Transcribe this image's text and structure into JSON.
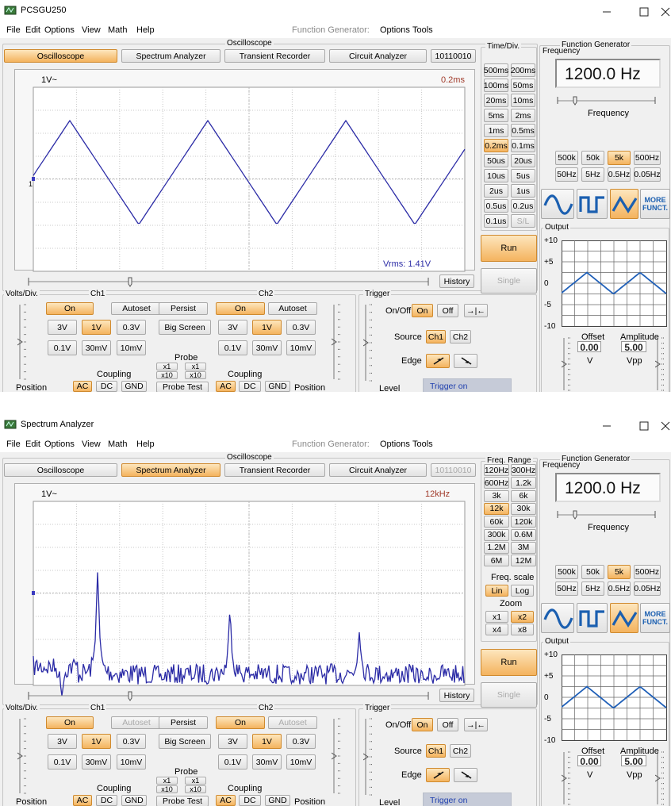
{
  "windows": [
    {
      "title": "PCSGU250",
      "menu": [
        "File",
        "Edit",
        "Options",
        "View",
        "Math",
        "Help"
      ],
      "generator_menu": {
        "label": "Function Generator:",
        "items": [
          "Options",
          "Tools"
        ]
      },
      "oscilloscope_label": "Oscilloscope",
      "tabs": [
        "Oscilloscope",
        "Spectrum Analyzer",
        "Transient Recorder",
        "Circuit Analyzer",
        "10110010"
      ],
      "active_tab": 0,
      "screen": {
        "mode": "scope",
        "volts_label": "1V~",
        "range_label": "0.2ms",
        "marker": "1",
        "vrms": "Vrms: 1.41V"
      },
      "history": "History",
      "timebase": {
        "title": "Time/Div.",
        "buttons": [
          "500ms",
          "200ms",
          "100ms",
          "50ms",
          "20ms",
          "10ms",
          "5ms",
          "2ms",
          "1ms",
          "0.5ms",
          "0.2ms",
          "0.1ms",
          "50us",
          "20us",
          "10us",
          "5us",
          "2us",
          "1us",
          "0.5us",
          "0.2us",
          "0.1us",
          "S/L"
        ],
        "active": 10,
        "disabled": 21
      },
      "run": "Run",
      "single": "Single",
      "volts_div": {
        "title": "Volts/Div.",
        "ch1": {
          "title": "Ch1",
          "on": "On",
          "autoset": "Autoset",
          "autoset_disabled": false,
          "ranges": [
            "3V",
            "1V",
            "0.3V",
            "0.1V",
            "30mV",
            "10mV"
          ],
          "active_range": 1,
          "coupling_label": "Coupling",
          "coupling": [
            "AC",
            "DC",
            "GND"
          ],
          "active_coupling": 0,
          "position": "Position"
        },
        "ch2": {
          "title": "Ch2",
          "on": "On",
          "autoset": "Autoset",
          "autoset_disabled": false,
          "ranges": [
            "3V",
            "1V",
            "0.3V",
            "0.1V",
            "30mV",
            "10mV"
          ],
          "active_range": 1,
          "coupling_label": "Coupling",
          "coupling": [
            "AC",
            "DC",
            "GND"
          ],
          "active_coupling": 0,
          "position": "Position"
        },
        "persist": "Persist",
        "big_screen": "Big Screen",
        "probe": {
          "title": "Probe",
          "ch1": [
            "x1",
            "x10"
          ],
          "ch2": [
            "x1",
            "x10"
          ],
          "test": "Probe Test"
        }
      },
      "trigger": {
        "title": "Trigger",
        "onoff_label": "On/Off",
        "on": "On",
        "off": "Off",
        "sync": "→|←",
        "source_label": "Source",
        "sources": [
          "Ch1",
          "Ch2"
        ],
        "active_source": 0,
        "edge_label": "Edge",
        "active_edge": 0,
        "level": "Level",
        "status": "Trigger on"
      },
      "generator": {
        "title": "Function Generator",
        "frequency_title": "Frequency",
        "display": "1200.0 Hz",
        "slider_label": "Frequency",
        "ranges": [
          "500k",
          "50k",
          "5k",
          "500Hz",
          "50Hz",
          "5Hz",
          "0.5Hz",
          "0.05Hz"
        ],
        "active_range": 2,
        "active_wave": 2,
        "more": [
          "MORE",
          "FUNCT."
        ],
        "output": {
          "title": "Output",
          "ticks": [
            "+10",
            "+5",
            "0",
            "-5",
            "-10"
          ]
        },
        "offset": {
          "label": "Offset",
          "value": "0.00",
          "unit": "V"
        },
        "amplitude": {
          "label": "Amplitude",
          "value": "5.00",
          "unit": "Vpp"
        }
      }
    },
    {
      "title": "Spectrum Analyzer",
      "menu": [
        "File",
        "Edit",
        "Options",
        "View",
        "Math",
        "Help"
      ],
      "generator_menu": {
        "label": "Function Generator:",
        "items": [
          "Options",
          "Tools"
        ]
      },
      "oscilloscope_label": "Oscilloscope",
      "tabs": [
        "Oscilloscope",
        "Spectrum Analyzer",
        "Transient Recorder",
        "Circuit Analyzer",
        "10110010"
      ],
      "active_tab": 1,
      "tab_disabled": 4,
      "screen": {
        "mode": "spectrum",
        "volts_label": "1V~",
        "range_label": "12kHz"
      },
      "history": "History",
      "freq_range": {
        "title": "Freq. Range",
        "buttons": [
          "120Hz",
          "300Hz",
          "600Hz",
          "1.2k",
          "3k",
          "6k",
          "12k",
          "30k",
          "60k",
          "120k",
          "300k",
          "0.6M",
          "1.2M",
          "3M",
          "6M",
          "12M"
        ],
        "active": 6,
        "scale_title": "Freq. scale",
        "scales": [
          "Lin",
          "Log"
        ],
        "active_scale": 0,
        "zoom_title": "Zoom",
        "zooms": [
          "x1",
          "x2",
          "x4",
          "x8"
        ],
        "active_zoom": 1
      },
      "run": "Run",
      "single": "Single",
      "volts_div": {
        "title": "Volts/Div.",
        "ch1": {
          "title": "Ch1",
          "on": "On",
          "autoset": "Autoset",
          "autoset_disabled": true,
          "ranges": [
            "3V",
            "1V",
            "0.3V",
            "0.1V",
            "30mV",
            "10mV"
          ],
          "active_range": 1,
          "coupling_label": "Coupling",
          "coupling": [
            "AC",
            "DC",
            "GND"
          ],
          "active_coupling": 0,
          "position": "Position"
        },
        "ch2": {
          "title": "Ch2",
          "on": "On",
          "autoset": "Autoset",
          "autoset_disabled": true,
          "ranges": [
            "3V",
            "1V",
            "0.3V",
            "0.1V",
            "30mV",
            "10mV"
          ],
          "active_range": 1,
          "coupling_label": "Coupling",
          "coupling": [
            "AC",
            "DC",
            "GND"
          ],
          "active_coupling": 0,
          "position": "Position"
        },
        "persist": "Persist",
        "big_screen": "Big Screen",
        "probe": {
          "title": "Probe",
          "ch1": [
            "x1",
            "x10"
          ],
          "ch2": [
            "x1",
            "x10"
          ],
          "test": "Probe Test"
        }
      },
      "trigger": {
        "title": "Trigger",
        "onoff_label": "On/Off",
        "on": "On",
        "off": "Off",
        "sync": "→|←",
        "source_label": "Source",
        "sources": [
          "Ch1",
          "Ch2"
        ],
        "active_source": 0,
        "edge_label": "Edge",
        "active_edge": 0,
        "level": "Level",
        "status": "Trigger on"
      },
      "generator": {
        "title": "Function Generator",
        "frequency_title": "Frequency",
        "display": "1200.0 Hz",
        "slider_label": "Frequency",
        "ranges": [
          "500k",
          "50k",
          "5k",
          "500Hz",
          "50Hz",
          "5Hz",
          "0.5Hz",
          "0.05Hz"
        ],
        "active_range": 2,
        "active_wave": 2,
        "more": [
          "MORE",
          "FUNCT."
        ],
        "output": {
          "title": "Output",
          "ticks": [
            "+10",
            "+5",
            "0",
            "-5",
            "-10"
          ]
        },
        "offset": {
          "label": "Offset",
          "value": "0.00",
          "unit": "V"
        },
        "amplitude": {
          "label": "Amplitude",
          "value": "5.00",
          "unit": "Vpp"
        }
      }
    }
  ]
}
